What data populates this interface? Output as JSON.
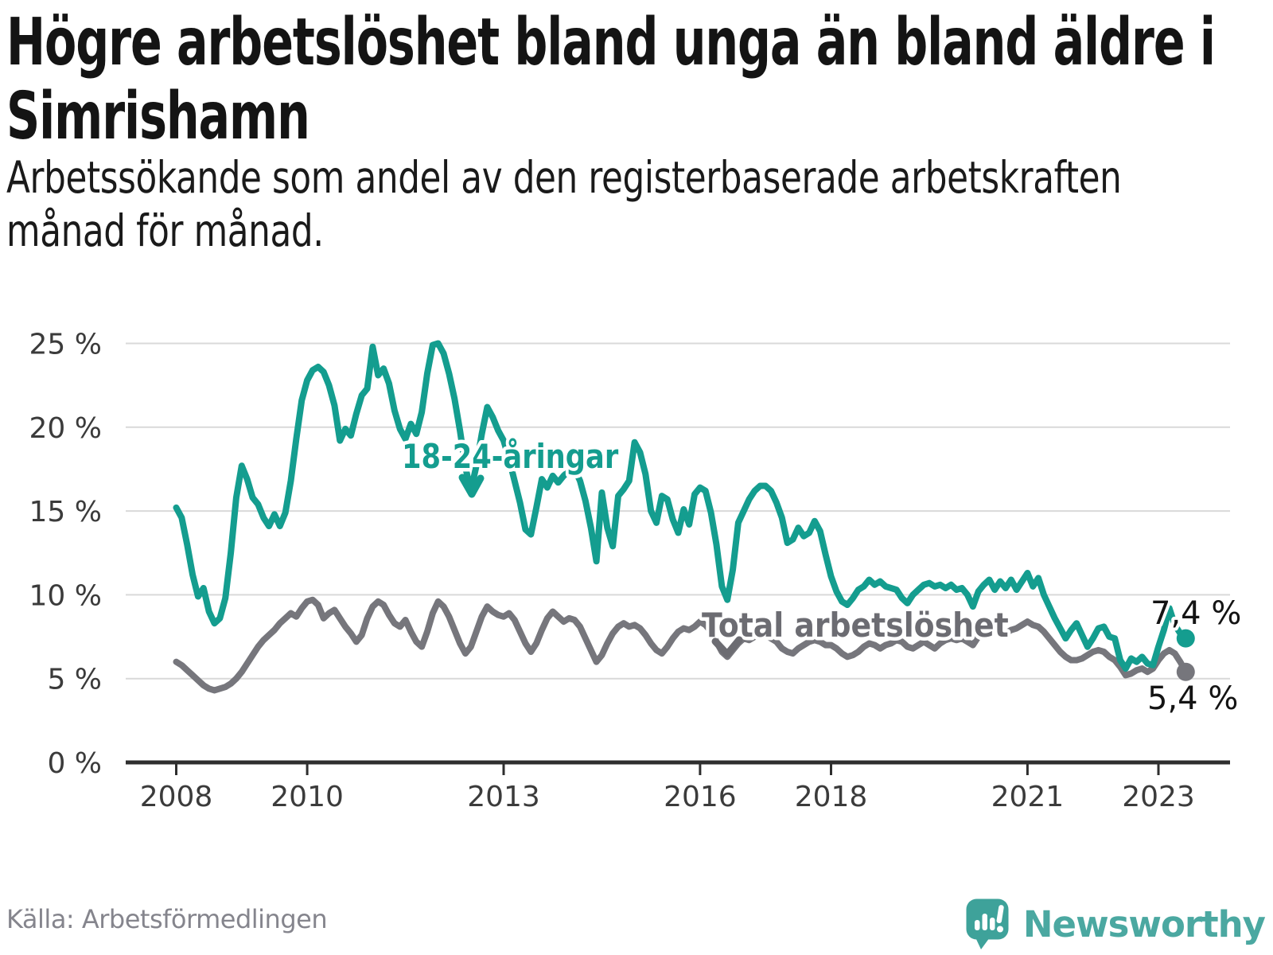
{
  "title": "Högre arbetslöshet bland unga än bland äldre i Simrishamn",
  "subtitle": "Arbetssökande som andel av den registerbaserade arbetskraften månad för månad.",
  "source": "Källa: Arbetsförmedlingen",
  "branding": {
    "name": "Newsworthy",
    "logo_icon": "speech-bubble-bar-chart-icon"
  },
  "colors": {
    "youth_line": "#149d8f",
    "total_line": "#76767c",
    "total_label": "#6c6c72",
    "grid": "#d9d9d9",
    "axis": "#2e2e2e",
    "logo_teal": "#3ea29a",
    "logo_text": "#4ba8a1"
  },
  "chart_data": {
    "type": "line",
    "frequency": "monthly",
    "x_start_year": 2008,
    "x_start_month": 1,
    "x_tick_years": [
      2008,
      2010,
      2013,
      2016,
      2018,
      2021,
      2023
    ],
    "y_ticks": [
      0,
      5,
      10,
      15,
      20,
      25
    ],
    "y_tick_suffix": " %",
    "ylim": [
      0,
      26.5
    ],
    "grid": "horizontal",
    "legend_position": "inline-annotations",
    "series": [
      {
        "name": "18-24-åringar",
        "color": "#149d8f",
        "end_label": "7,4 %",
        "end_value": 7.4,
        "values": [
          15.2,
          14.6,
          13.0,
          11.2,
          9.9,
          10.4,
          9.0,
          8.3,
          8.6,
          9.8,
          12.5,
          15.8,
          17.7,
          16.9,
          15.8,
          15.4,
          14.6,
          14.1,
          14.8,
          14.1,
          14.9,
          16.8,
          19.3,
          21.6,
          22.8,
          23.4,
          23.6,
          23.3,
          22.5,
          21.3,
          19.2,
          19.9,
          19.5,
          20.8,
          21.9,
          22.3,
          24.8,
          23.1,
          23.5,
          22.6,
          21.0,
          19.9,
          19.3,
          20.2,
          19.6,
          20.9,
          23.2,
          24.9,
          25.0,
          24.4,
          23.2,
          21.7,
          19.8,
          17.6,
          16.2,
          17.7,
          19.6,
          21.2,
          20.6,
          19.8,
          19.2,
          18.1,
          16.8,
          15.5,
          13.9,
          13.6,
          15.2,
          16.9,
          16.4,
          17.1,
          16.7,
          17.1,
          17.4,
          17.5,
          16.8,
          15.6,
          14.0,
          12.0,
          16.1,
          14.0,
          12.9,
          15.9,
          16.3,
          16.8,
          19.1,
          18.5,
          17.2,
          15.0,
          14.3,
          15.9,
          15.7,
          14.5,
          13.7,
          15.1,
          14.2,
          16.0,
          16.4,
          16.2,
          14.9,
          13.0,
          10.5,
          9.7,
          11.5,
          14.3,
          15.0,
          15.7,
          16.2,
          16.5,
          16.5,
          16.2,
          15.5,
          14.6,
          13.1,
          13.3,
          14.0,
          13.5,
          13.7,
          14.4,
          13.8,
          12.4,
          11.1,
          10.2,
          9.6,
          9.4,
          9.8,
          10.3,
          10.5,
          10.9,
          10.6,
          10.8,
          10.5,
          10.4,
          10.3,
          9.8,
          9.5,
          10.0,
          10.3,
          10.6,
          10.7,
          10.5,
          10.6,
          10.4,
          10.6,
          10.3,
          10.4,
          10.0,
          9.3,
          10.2,
          10.6,
          10.9,
          10.3,
          10.8,
          10.4,
          10.9,
          10.3,
          10.8,
          11.3,
          10.5,
          11.0,
          10.0,
          9.3,
          8.6,
          8.0,
          7.4,
          7.9,
          8.3,
          7.6,
          6.9,
          7.4,
          8.0,
          8.1,
          7.5,
          7.4,
          6.1,
          5.6,
          6.2,
          6.0,
          6.3,
          5.9,
          5.8,
          6.9,
          7.9,
          9.2,
          8.2,
          7.7,
          7.4
        ]
      },
      {
        "name": "Total arbetslöshet",
        "color": "#76767c",
        "end_label": "5,4 %",
        "end_value": 5.4,
        "values": [
          6.0,
          5.8,
          5.5,
          5.2,
          4.9,
          4.6,
          4.4,
          4.3,
          4.4,
          4.5,
          4.7,
          5.0,
          5.4,
          5.9,
          6.4,
          6.9,
          7.3,
          7.6,
          7.9,
          8.3,
          8.6,
          8.9,
          8.7,
          9.2,
          9.6,
          9.7,
          9.4,
          8.6,
          8.9,
          9.1,
          8.6,
          8.1,
          7.7,
          7.2,
          7.6,
          8.6,
          9.3,
          9.6,
          9.4,
          8.8,
          8.3,
          8.1,
          8.5,
          7.8,
          7.2,
          6.9,
          7.8,
          8.9,
          9.6,
          9.3,
          8.7,
          7.9,
          7.1,
          6.5,
          6.9,
          7.8,
          8.7,
          9.3,
          9.0,
          8.8,
          8.7,
          8.9,
          8.5,
          7.8,
          7.1,
          6.6,
          7.1,
          7.9,
          8.6,
          9.0,
          8.7,
          8.4,
          8.6,
          8.5,
          8.1,
          7.4,
          6.7,
          6.0,
          6.4,
          7.1,
          7.7,
          8.1,
          8.3,
          8.1,
          8.2,
          8.0,
          7.6,
          7.1,
          6.7,
          6.5,
          6.9,
          7.4,
          7.8,
          8.0,
          7.9,
          8.1,
          8.4,
          8.2,
          7.8,
          7.2,
          6.6,
          6.3,
          6.7,
          7.1,
          7.4,
          7.3,
          7.5,
          7.6,
          7.6,
          7.4,
          7.2,
          6.8,
          6.6,
          6.5,
          6.8,
          7.0,
          7.2,
          7.3,
          7.2,
          7.0,
          7.0,
          6.8,
          6.5,
          6.3,
          6.4,
          6.6,
          6.9,
          7.1,
          7.0,
          6.8,
          7.0,
          7.1,
          7.3,
          7.2,
          6.9,
          6.8,
          7.0,
          7.2,
          7.0,
          6.8,
          7.1,
          7.3,
          7.4,
          7.3,
          7.4,
          7.2,
          7.0,
          7.5,
          7.9,
          8.2,
          8.0,
          7.8,
          7.7,
          7.9,
          8.0,
          8.2,
          8.4,
          8.2,
          8.1,
          7.8,
          7.4,
          7.0,
          6.6,
          6.3,
          6.1,
          6.1,
          6.2,
          6.4,
          6.6,
          6.7,
          6.6,
          6.3,
          6.1,
          5.7,
          5.2,
          5.3,
          5.5,
          5.6,
          5.4,
          5.6,
          6.1,
          6.5,
          6.7,
          6.5,
          6.0,
          5.4
        ]
      }
    ]
  }
}
